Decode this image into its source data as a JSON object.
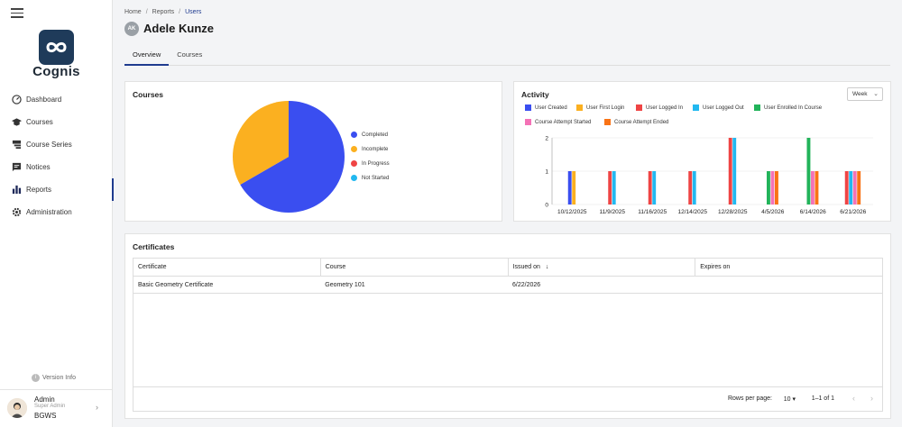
{
  "app": {
    "name": "Cognis"
  },
  "sidebar": {
    "items": [
      {
        "label": "Dashboard",
        "icon": "dashboard-icon"
      },
      {
        "label": "Courses",
        "icon": "courses-icon"
      },
      {
        "label": "Course Series",
        "icon": "course-series-icon"
      },
      {
        "label": "Notices",
        "icon": "notices-icon"
      },
      {
        "label": "Reports",
        "icon": "reports-icon",
        "active": true
      },
      {
        "label": "Administration",
        "icon": "gear-icon"
      }
    ],
    "version_label": "Version Info",
    "user": {
      "name": "Admin",
      "role": "Super Admin",
      "org": "BGWS"
    }
  },
  "breadcrumb": [
    "Home",
    "Reports",
    "Users"
  ],
  "header": {
    "initials": "AK",
    "title": "Adele Kunze"
  },
  "tabs": [
    "Overview",
    "Courses"
  ],
  "courses_card": {
    "title": "Courses",
    "legend": [
      {
        "label": "Completed",
        "color": "#3a4ef0"
      },
      {
        "label": "Incomplete",
        "color": "#fbb020"
      },
      {
        "label": "In Progress",
        "color": "#ef4444"
      },
      {
        "label": "Not Started",
        "color": "#22b8f0"
      }
    ]
  },
  "activity_card": {
    "title": "Activity",
    "period": "Week",
    "legend": [
      {
        "label": "User Created",
        "color": "#3a4ef0"
      },
      {
        "label": "User First Login",
        "color": "#fbb020"
      },
      {
        "label": "User Logged In",
        "color": "#ef4444"
      },
      {
        "label": "User Logged Out",
        "color": "#22b8f0"
      },
      {
        "label": "User Enrolled In Course",
        "color": "#22b35a"
      },
      {
        "label": "Course Attempt Started",
        "color": "#f472b6"
      },
      {
        "label": "Course Attempt Ended",
        "color": "#f97316"
      }
    ]
  },
  "chart_data": [
    {
      "type": "pie",
      "categories": [
        "Completed",
        "Incomplete",
        "In Progress",
        "Not Started"
      ],
      "values": [
        2,
        1,
        0,
        0
      ],
      "colors": [
        "#3a4ef0",
        "#fbb020",
        "#ef4444",
        "#22b8f0"
      ],
      "legend": "right"
    },
    {
      "type": "bar",
      "categories": [
        "10/12/2025",
        "11/9/2025",
        "11/16/2025",
        "12/14/2025",
        "12/28/2025",
        "4/5/2026",
        "6/14/2026",
        "6/21/2026"
      ],
      "ylim": [
        0,
        2
      ],
      "yticks": [
        0,
        1,
        2
      ],
      "grid": true,
      "legend": "top",
      "series": [
        {
          "name": "User Created",
          "color": "#3a4ef0",
          "values": [
            1,
            0,
            0,
            0,
            0,
            0,
            0,
            0
          ]
        },
        {
          "name": "User First Login",
          "color": "#fbb020",
          "values": [
            1,
            0,
            0,
            0,
            0,
            0,
            0,
            0
          ]
        },
        {
          "name": "User Logged In",
          "color": "#ef4444",
          "values": [
            0,
            1,
            1,
            1,
            2,
            0,
            0,
            1
          ]
        },
        {
          "name": "User Logged Out",
          "color": "#22b8f0",
          "values": [
            0,
            1,
            1,
            1,
            2,
            0,
            0,
            1
          ]
        },
        {
          "name": "User Enrolled In Course",
          "color": "#22b35a",
          "values": [
            0,
            0,
            0,
            0,
            0,
            1,
            2,
            0
          ]
        },
        {
          "name": "Course Attempt Started",
          "color": "#f472b6",
          "values": [
            0,
            0,
            0,
            0,
            0,
            1,
            1,
            1
          ]
        },
        {
          "name": "Course Attempt Ended",
          "color": "#f97316",
          "values": [
            0,
            0,
            0,
            0,
            0,
            1,
            1,
            1
          ]
        }
      ]
    }
  ],
  "certificates": {
    "title": "Certificates",
    "columns": [
      "Certificate",
      "Course",
      "Issued on",
      "Expires on"
    ],
    "rows": [
      [
        "Basic Geometry Certificate",
        "Geometry 101",
        "6/22/2026",
        ""
      ]
    ],
    "rows_per_page_label": "Rows per page:",
    "rows_per_page": "10",
    "range": "1–1 of 1"
  }
}
